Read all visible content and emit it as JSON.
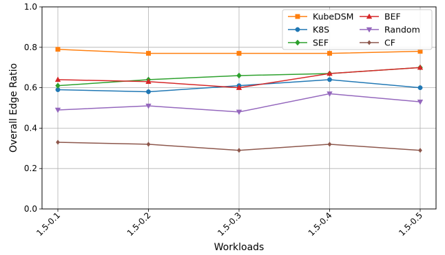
{
  "chart_data": {
    "type": "line",
    "title": "",
    "xlabel": "Workloads",
    "ylabel": "Overall Edge Ratio",
    "categories": [
      "1.5-0.1",
      "1.5-0.2",
      "1.5-0.3",
      "1.5-0.4",
      "1.5-0.5"
    ],
    "ylim": [
      0.0,
      1.0
    ],
    "yticks": [
      "0.0",
      "0.2",
      "0.4",
      "0.6",
      "0.8",
      "1.0"
    ],
    "grid": true,
    "legend_position": "top-right",
    "series": [
      {
        "name": "KubeDSM",
        "color": "#ff7f0e",
        "marker": "square",
        "values": [
          0.79,
          0.77,
          0.77,
          0.77,
          0.78
        ]
      },
      {
        "name": "K8S",
        "color": "#1f77b4",
        "marker": "circle",
        "values": [
          0.59,
          0.58,
          0.61,
          0.64,
          0.6
        ]
      },
      {
        "name": "SEF",
        "color": "#2ca02c",
        "marker": "diamond",
        "values": [
          0.61,
          0.64,
          0.66,
          0.67,
          0.7
        ]
      },
      {
        "name": "BEF",
        "color": "#d62728",
        "marker": "triangle-up",
        "values": [
          0.64,
          0.63,
          0.6,
          0.67,
          0.7
        ]
      },
      {
        "name": "Random",
        "color": "#9467bd",
        "marker": "triangle-down",
        "values": [
          0.49,
          0.51,
          0.48,
          0.57,
          0.53
        ]
      },
      {
        "name": "CF",
        "color": "#8c564b",
        "marker": "diamond-small",
        "values": [
          0.33,
          0.32,
          0.29,
          0.32,
          0.29
        ]
      }
    ]
  }
}
